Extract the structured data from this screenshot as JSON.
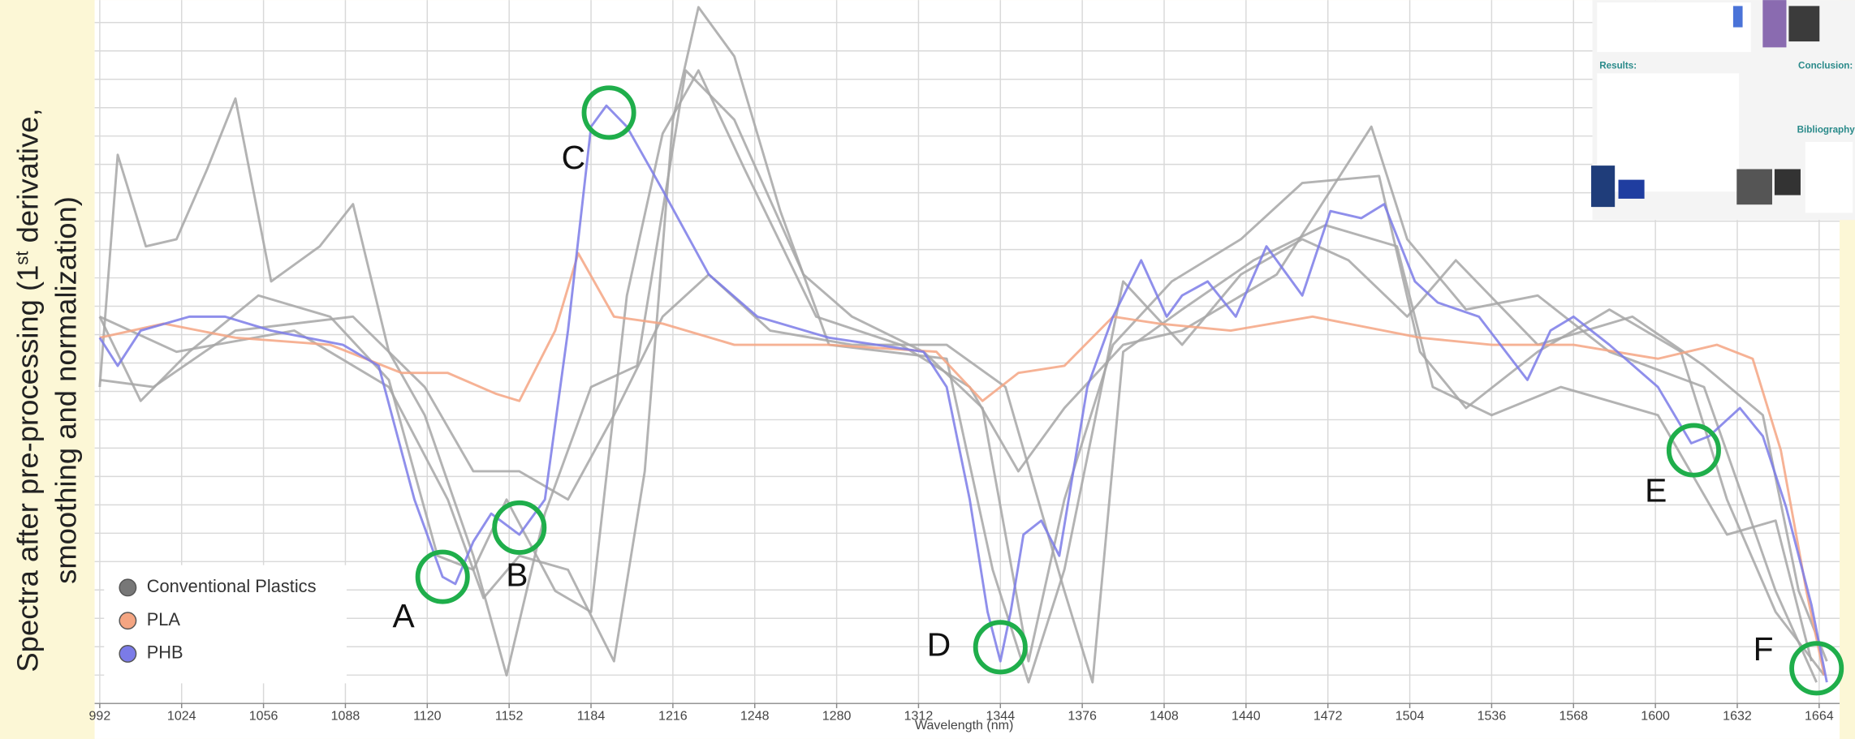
{
  "chart_data": {
    "type": "line",
    "y_label": [
      "Spectra after pre-processing (1",
      "st",
      "derivative,",
      "smoothing and normalization)"
    ],
    "x_label": "Wavelength (nm)",
    "xlim": [
      990,
      1672
    ],
    "xticks": [
      992,
      1024,
      1056,
      1088,
      1120,
      1152,
      1184,
      1216,
      1248,
      1280,
      1312,
      1344,
      1376,
      1408,
      1440,
      1472,
      1504,
      1536,
      1568,
      1600,
      1632,
      1664
    ],
    "ylim": [
      0,
      100
    ],
    "grid": true,
    "legend": "lower left",
    "series": [
      {
        "name": "Conventional Plastics",
        "color": "#a6a6a6",
        "lines": [
          {
            "x": [
              992,
              1022,
              1068,
              1105,
              1128,
              1142,
              1156,
              1175,
              1193,
              1205,
              1216,
              1226,
              1240,
              1258,
              1277,
              1323,
              1341,
              1355,
              1369,
              1392,
              1415,
              1438,
              1462,
              1480,
              1503,
              1522,
              1554,
              1591,
              1619,
              1642,
              1656,
              1667
            ],
            "values": [
              55,
              50,
              53,
              45,
              29,
              15,
              21,
              19,
              6,
              33,
              83,
              99,
              92,
              70,
              51,
              49,
              19,
              3,
              19,
              60,
              51,
              61,
              66,
              63,
              55,
              63,
              51,
              55,
              48,
              41,
              16,
              6
            ]
          },
          {
            "x": [
              992,
              999,
              1010,
              1022,
              1034,
              1045,
              1059,
              1078,
              1091,
              1105,
              1119,
              1138,
              1151,
              1166,
              1184,
              1202,
              1221,
              1240,
              1267,
              1286,
              1314,
              1337,
              1355,
              1369,
              1388,
              1411,
              1438,
              1462,
              1492,
              1508,
              1526,
              1554,
              1582,
              1610,
              1628,
              1647,
              1666
            ],
            "values": [
              45,
              78,
              65,
              66,
              76,
              86,
              60,
              65,
              71,
              50,
              41,
              21,
              4,
              27,
              45,
              48,
              90,
              83,
              61,
              55,
              50,
              42,
              6,
              29,
              51,
              60,
              66,
              74,
              75,
              50,
              42,
              50,
              56,
              50,
              29,
              13,
              4
            ]
          },
          {
            "x": [
              992,
              1013,
              1045,
              1091,
              1119,
              1138,
              1156,
              1175,
              1193,
              1212,
              1230,
              1254,
              1286,
              1323,
              1346,
              1369,
              1380,
              1392,
              1415,
              1443,
              1471,
              1499,
              1513,
              1536,
              1563,
              1601,
              1628,
              1647,
              1661
            ],
            "values": [
              46,
              45,
              53,
              55,
              45,
              33,
              33,
              29,
              41,
              55,
              61,
              53,
              51,
              51,
              45,
              16,
              3,
              50,
              56,
              63,
              68,
              65,
              45,
              41,
              45,
              41,
              24,
              26,
              6
            ]
          },
          {
            "x": [
              992,
              1008,
              1027,
              1054,
              1082,
              1105,
              1124,
              1138,
              1151,
              1170,
              1184,
              1198,
              1212,
              1226,
              1244,
              1272,
              1305,
              1332,
              1351,
              1369,
              1392,
              1415,
              1452,
              1489,
              1503,
              1526,
              1554,
              1582,
              1619,
              1647,
              1663
            ],
            "values": [
              55,
              43,
              50,
              58,
              55,
              46,
              21,
              19,
              29,
              16,
              13,
              58,
              81,
              90,
              76,
              55,
              51,
              45,
              33,
              42,
              51,
              53,
              61,
              82,
              66,
              56,
              58,
              50,
              45,
              16,
              3
            ]
          }
        ]
      },
      {
        "name": "PLA",
        "color": "#f4a582",
        "lines": [
          {
            "x": [
              992,
              1017,
              1045,
              1082,
              1110,
              1128,
              1147,
              1156,
              1170,
              1179,
              1193,
              1212,
              1240,
              1277,
              1319,
              1337,
              1351,
              1369,
              1388,
              1406,
              1434,
              1466,
              1508,
              1536,
              1568,
              1601,
              1624,
              1638,
              1649,
              1659,
              1666
            ],
            "values": [
              52,
              54,
              52,
              51,
              47,
              47,
              44,
              43,
              53,
              64,
              55,
              54,
              51,
              51,
              50,
              43,
              47,
              48,
              55,
              54,
              53,
              55,
              52,
              51,
              51,
              49,
              51,
              49,
              36,
              16,
              4
            ]
          }
        ]
      },
      {
        "name": "PHB",
        "color": "#7b7be8",
        "lines": [
          {
            "x": [
              992,
              999,
              1008,
              1027,
              1041,
              1059,
              1087,
              1101,
              1115,
              1126,
              1131,
              1138,
              1145,
              1156,
              1166,
              1175,
              1184,
              1190,
              1198,
              1212,
              1230,
              1249,
              1277,
              1314,
              1323,
              1332,
              1339,
              1344,
              1348,
              1353,
              1360,
              1367,
              1378,
              1388,
              1399,
              1409,
              1415,
              1425,
              1436,
              1448,
              1462,
              1473,
              1485,
              1494,
              1506,
              1515,
              1531,
              1550,
              1559,
              1568,
              1582,
              1601,
              1614,
              1621,
              1633,
              1642,
              1651,
              1661,
              1667
            ],
            "values": [
              52,
              48,
              53,
              55,
              55,
              53,
              51,
              48,
              29,
              18,
              17,
              23,
              27,
              24,
              29,
              53,
              82,
              85,
              82,
              73,
              61,
              55,
              52,
              50,
              45,
              29,
              13,
              6,
              13,
              24,
              26,
              21,
              45,
              55,
              63,
              55,
              58,
              60,
              55,
              65,
              58,
              70,
              69,
              71,
              60,
              57,
              55,
              46,
              53,
              55,
              51,
              45,
              37,
              38,
              42,
              38,
              28,
              14,
              3
            ]
          }
        ]
      }
    ],
    "annotations": [
      {
        "label": "A",
        "x": 1126,
        "y": 18
      },
      {
        "label": "B",
        "x": 1156,
        "y": 25
      },
      {
        "label": "C",
        "x": 1191,
        "y": 84
      },
      {
        "label": "D",
        "x": 1344,
        "y": 8
      },
      {
        "label": "E",
        "x": 1615,
        "y": 36
      },
      {
        "label": "F",
        "x": 1663,
        "y": 5
      }
    ],
    "inset": {
      "headings": [
        "Results:",
        "Conclusion:",
        "Bibliography:"
      ]
    }
  }
}
